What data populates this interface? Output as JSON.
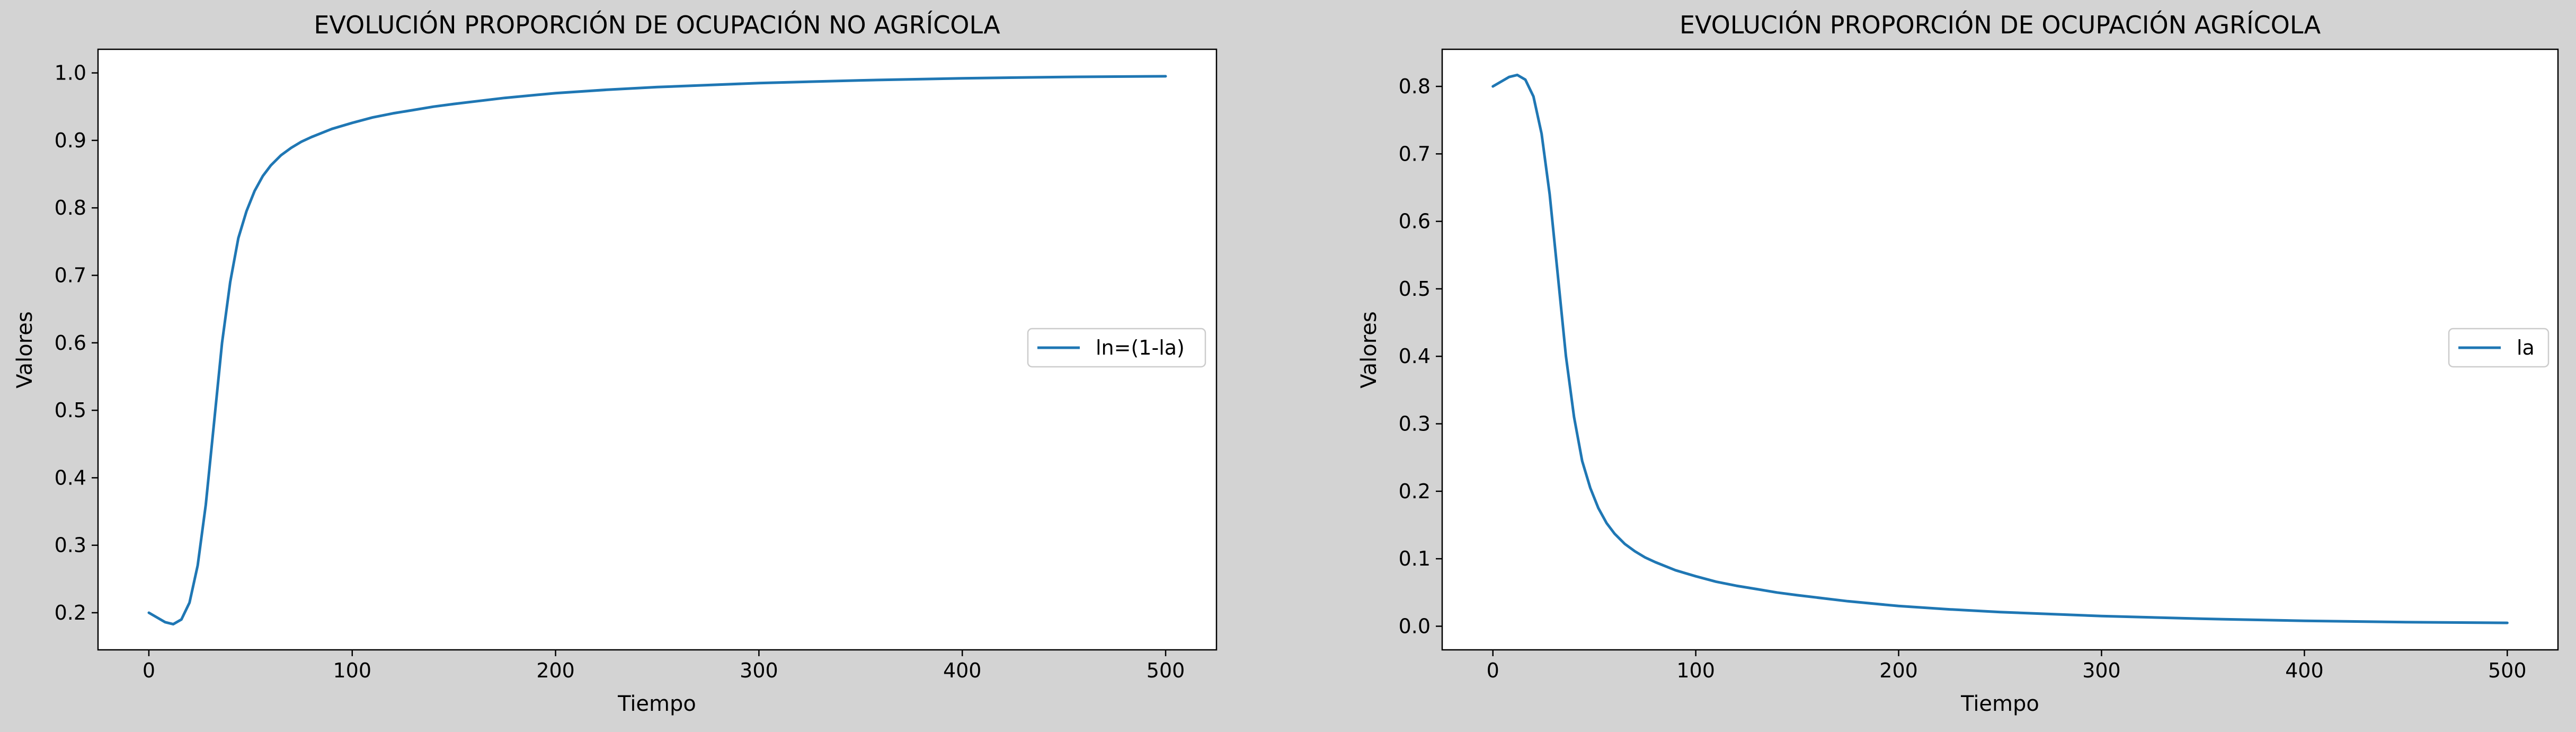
{
  "figure": {
    "background": "#d3d3d3"
  },
  "chart_data": [
    {
      "type": "line",
      "title": "EVOLUCIÓN PROPORCIÓN DE OCUPACIÓN NO AGRÍCOLA",
      "xlabel": "Tiempo",
      "ylabel": "Valores",
      "xlim": [
        -25,
        525
      ],
      "ylim": [
        0.145,
        1.035
      ],
      "xticks": [
        0,
        100,
        200,
        300,
        400,
        500
      ],
      "xtick_labels": [
        "0",
        "100",
        "200",
        "300",
        "400",
        "500"
      ],
      "yticks": [
        0.2,
        0.3,
        0.4,
        0.5,
        0.6,
        0.7,
        0.8,
        0.9,
        1.0
      ],
      "ytick_labels": [
        "0.2",
        "0.3",
        "0.4",
        "0.5",
        "0.6",
        "0.7",
        "0.8",
        "0.9",
        "1.0"
      ],
      "grid": false,
      "legend_position": "center-right",
      "series": [
        {
          "name": "ln=(1-la)",
          "color": "#1f77b4",
          "x": [
            0,
            4,
            8,
            12,
            16,
            20,
            24,
            28,
            32,
            36,
            40,
            44,
            48,
            52,
            56,
            60,
            65,
            70,
            75,
            80,
            90,
            100,
            110,
            120,
            130,
            140,
            150,
            175,
            200,
            225,
            250,
            275,
            300,
            350,
            400,
            450,
            500
          ],
          "y": [
            0.2,
            0.193,
            0.186,
            0.183,
            0.19,
            0.215,
            0.27,
            0.36,
            0.48,
            0.6,
            0.69,
            0.755,
            0.795,
            0.825,
            0.847,
            0.863,
            0.878,
            0.889,
            0.898,
            0.905,
            0.917,
            0.926,
            0.934,
            0.94,
            0.945,
            0.95,
            0.954,
            0.963,
            0.97,
            0.975,
            0.979,
            0.982,
            0.985,
            0.989,
            0.992,
            0.994,
            0.995
          ]
        }
      ]
    },
    {
      "type": "line",
      "title": "EVOLUCIÓN PROPORCIÓN DE OCUPACIÓN AGRÍCOLA",
      "xlabel": "Tiempo",
      "ylabel": "Valores",
      "xlim": [
        -25,
        525
      ],
      "ylim": [
        -0.035,
        0.855
      ],
      "xticks": [
        0,
        100,
        200,
        300,
        400,
        500
      ],
      "xtick_labels": [
        "0",
        "100",
        "200",
        "300",
        "400",
        "500"
      ],
      "yticks": [
        0.0,
        0.1,
        0.2,
        0.3,
        0.4,
        0.5,
        0.6,
        0.7,
        0.8
      ],
      "ytick_labels": [
        "0.0",
        "0.1",
        "0.2",
        "0.3",
        "0.4",
        "0.5",
        "0.6",
        "0.7",
        "0.8"
      ],
      "grid": false,
      "legend_position": "center-right",
      "series": [
        {
          "name": "la",
          "color": "#1f77b4",
          "x": [
            0,
            4,
            8,
            12,
            16,
            20,
            24,
            28,
            32,
            36,
            40,
            44,
            48,
            52,
            56,
            60,
            65,
            70,
            75,
            80,
            90,
            100,
            110,
            120,
            130,
            140,
            150,
            175,
            200,
            225,
            250,
            275,
            300,
            350,
            400,
            450,
            500
          ],
          "y": [
            0.8,
            0.807,
            0.814,
            0.817,
            0.81,
            0.785,
            0.73,
            0.64,
            0.52,
            0.4,
            0.31,
            0.245,
            0.205,
            0.175,
            0.153,
            0.137,
            0.122,
            0.111,
            0.102,
            0.095,
            0.083,
            0.074,
            0.066,
            0.06,
            0.055,
            0.05,
            0.046,
            0.037,
            0.03,
            0.025,
            0.021,
            0.018,
            0.015,
            0.011,
            0.008,
            0.006,
            0.005
          ]
        }
      ]
    }
  ]
}
